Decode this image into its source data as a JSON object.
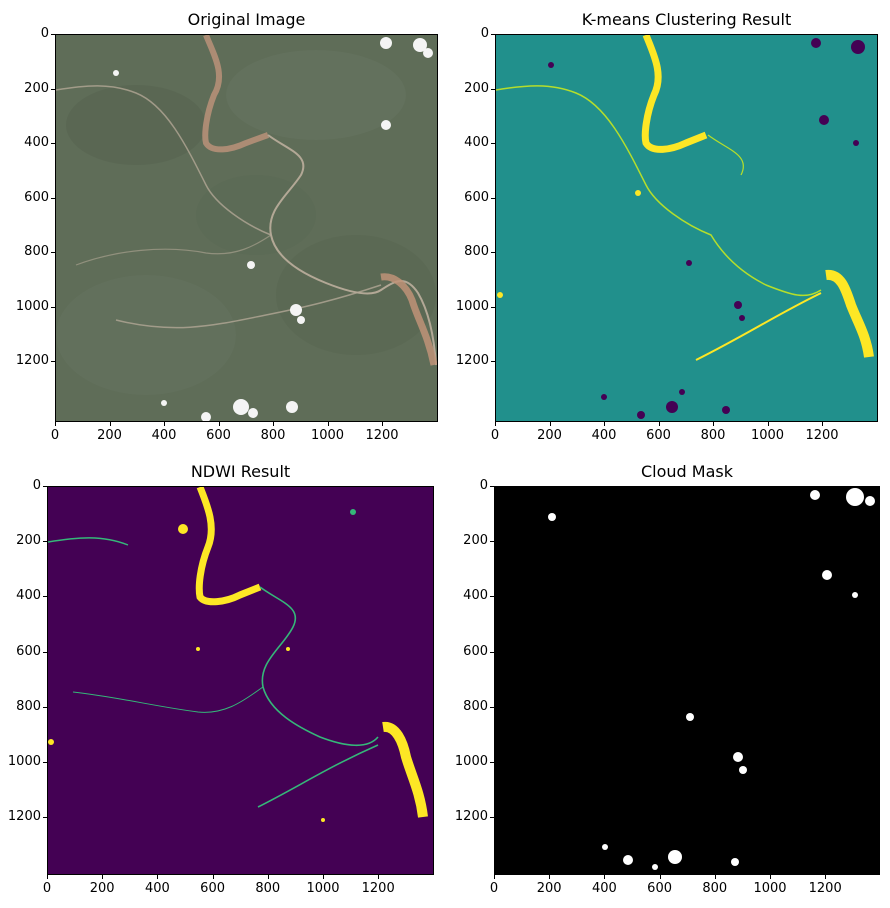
{
  "figure": {
    "panels": [
      {
        "id": "original",
        "title": "Original Image",
        "x_ticks": [
          "0",
          "200",
          "400",
          "600",
          "800",
          "1000",
          "1200"
        ],
        "y_ticks": [
          "0",
          "200",
          "400",
          "600",
          "800",
          "1000",
          "1200"
        ],
        "colors": {
          "background": "#5f6d58",
          "river": "#b58f78",
          "clouds": "#f4f4f4",
          "road": "#b3a896"
        }
      },
      {
        "id": "kmeans",
        "title": "K-means Clustering Result",
        "x_ticks": [
          "0",
          "200",
          "400",
          "600",
          "800",
          "1000",
          "1200"
        ],
        "y_ticks": [
          "0",
          "200",
          "400",
          "600",
          "800",
          "1000",
          "1200"
        ],
        "colors": {
          "background": "#21908c",
          "water": "#fde725",
          "clouds": "#440154",
          "edges": "#b5de2b"
        }
      },
      {
        "id": "ndwi",
        "title": "NDWI Result",
        "x_ticks": [
          "0",
          "200",
          "400",
          "600",
          "800",
          "1000",
          "1200"
        ],
        "y_ticks": [
          "0",
          "200",
          "400",
          "600",
          "800",
          "1000",
          "1200"
        ],
        "colors": {
          "background": "#440154",
          "water": "#fde725",
          "channel": "#35b779"
        }
      },
      {
        "id": "cloud",
        "title": "Cloud Mask",
        "x_ticks": [
          "0",
          "200",
          "400",
          "600",
          "800",
          "1000",
          "1200"
        ],
        "y_ticks": [
          "0",
          "200",
          "400",
          "600",
          "800",
          "1000",
          "1200"
        ],
        "colors": {
          "background": "#000000",
          "clouds": "#ffffff"
        }
      }
    ]
  }
}
